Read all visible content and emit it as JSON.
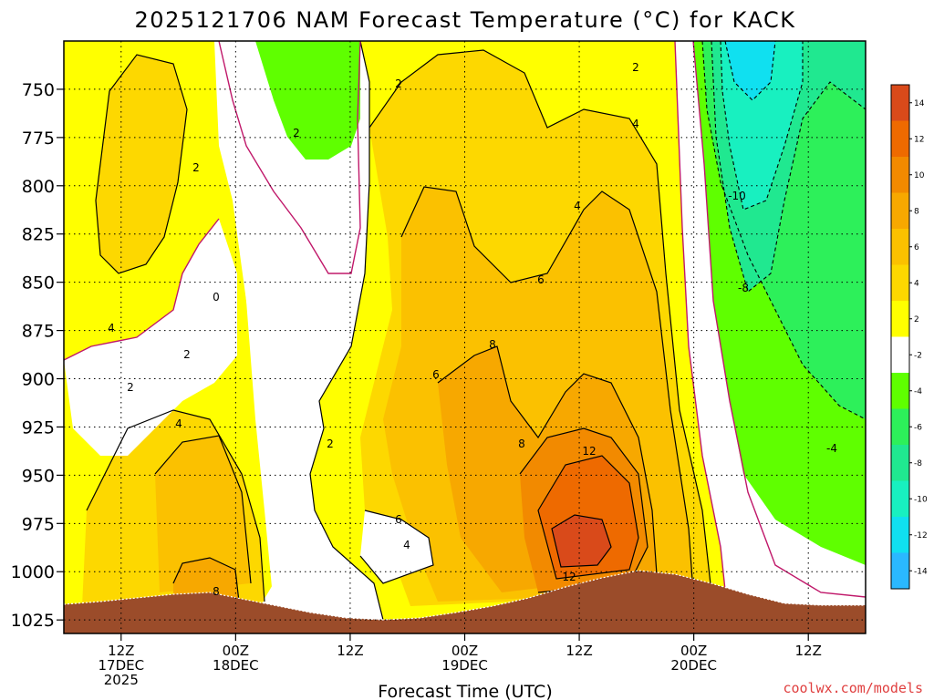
{
  "chart_data": {
    "type": "heatmap",
    "title": "2025121706 NAM Forecast Temperature (°C) for KACK",
    "xlabel": "Forecast Time (UTC)",
    "ylabel": "",
    "x_ticks": [
      {
        "line1": "12Z",
        "line2": "17DEC",
        "line3": "2025",
        "hour": 6
      },
      {
        "line1": "00Z",
        "line2": "18DEC",
        "line3": "",
        "hour": 18
      },
      {
        "line1": "12Z",
        "line2": "",
        "line3": "",
        "hour": 30
      },
      {
        "line1": "00Z",
        "line2": "19DEC",
        "line3": "",
        "hour": 42
      },
      {
        "line1": "12Z",
        "line2": "",
        "line3": "",
        "hour": 54
      },
      {
        "line1": "00Z",
        "line2": "20DEC",
        "line3": "",
        "hour": 66
      },
      {
        "line1": "12Z",
        "line2": "",
        "line3": "",
        "hour": 78
      }
    ],
    "xlim_hours": [
      0,
      84
    ],
    "y_ticks": [
      "750",
      "775",
      "800",
      "825",
      "850",
      "875",
      "900",
      "925",
      "950",
      "975",
      "1000",
      "1025"
    ],
    "ylim": [
      1032,
      725
    ],
    "grid": true,
    "colorbar": {
      "ticks": [
        "14",
        "12",
        "10",
        "8",
        "6",
        "4",
        "2",
        "-2",
        "-4",
        "-6",
        "-8",
        "-10",
        "-12",
        "-14"
      ],
      "colors": [
        "#d94a1a",
        "#ee6a00",
        "#f28a00",
        "#f7a800",
        "#fbc100",
        "#fdd800",
        "#ffff00",
        "#ffffff",
        "#5fff00",
        "#2df05a",
        "#20e890",
        "#18f0c0",
        "#10e0f0",
        "#2ab8ff"
      ],
      "placement": "right"
    },
    "contour_labels": [
      "2",
      "2",
      "2",
      "2",
      "2",
      "2",
      "2",
      "4",
      "4",
      "4",
      "4",
      "4",
      "6",
      "6",
      "6",
      "8",
      "8",
      "8",
      "0",
      "12",
      "12",
      "-10",
      "-8",
      "-4"
    ],
    "terrain_color": "#9b4c2a",
    "credit": "coolwx.com/models"
  }
}
